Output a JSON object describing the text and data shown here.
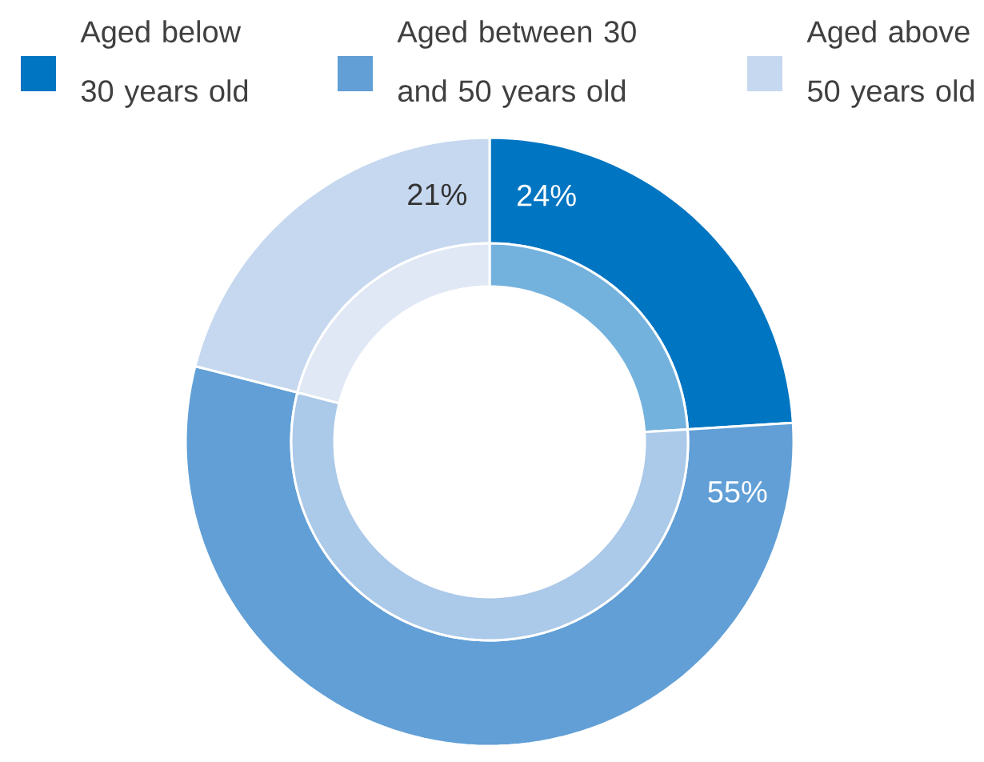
{
  "chart_data": {
    "type": "donut",
    "categories": [
      "Aged below 30 years old",
      "Aged between 30 and 50 years old",
      "Aged above 50 years old"
    ],
    "series": [
      {
        "values": [
          24,
          55,
          21
        ],
        "colors": [
          "#0075c2",
          "#619fd6",
          "#c6d8ef"
        ],
        "value_labels": [
          "24%",
          "55%",
          "21%"
        ]
      },
      {
        "values": [
          24,
          55,
          21
        ],
        "colors": [
          "#74b2de",
          "#abc9e8",
          "#e0e8f5"
        ]
      }
    ],
    "legend": "top"
  }
}
